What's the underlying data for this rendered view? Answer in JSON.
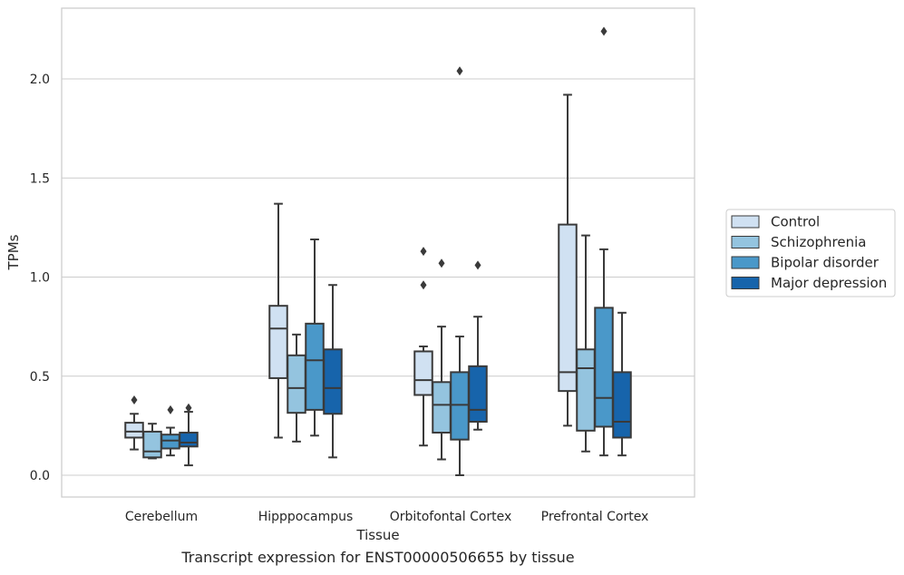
{
  "caption": "Transcript expression for ENST00000506655 by tissue",
  "chart_data": {
    "type": "box",
    "xlabel": "Tissue",
    "ylabel": "TPMs",
    "ylim": [
      -0.1,
      2.35
    ],
    "yticks": [
      0.0,
      0.5,
      1.0,
      1.5,
      2.0
    ],
    "ytick_labels": [
      "0.0",
      "0.5",
      "1.0",
      "1.5",
      "2.0"
    ],
    "grid": "horizontal",
    "legend_position": "right",
    "categories": [
      "Cerebellum",
      "Hipppocampus",
      "Orbitofontal Cortex",
      "Prefrontal Cortex"
    ],
    "series": [
      {
        "name": "Control",
        "color": "#d0e1f2",
        "boxes": [
          {
            "whislo": 0.13,
            "q1": 0.19,
            "med": 0.22,
            "q3": 0.265,
            "whishi": 0.31,
            "fliers": [
              0.38
            ]
          },
          {
            "whislo": 0.19,
            "q1": 0.49,
            "med": 0.74,
            "q3": 0.855,
            "whishi": 1.37,
            "fliers": []
          },
          {
            "whislo": 0.15,
            "q1": 0.405,
            "med": 0.48,
            "q3": 0.625,
            "whishi": 0.65,
            "fliers": [
              0.96,
              1.13
            ]
          },
          {
            "whislo": 0.25,
            "q1": 0.425,
            "med": 0.52,
            "q3": 1.265,
            "whishi": 1.92,
            "fliers": []
          }
        ]
      },
      {
        "name": "Schizophrenia",
        "color": "#94c4df",
        "boxes": [
          {
            "whislo": 0.085,
            "q1": 0.09,
            "med": 0.12,
            "q3": 0.22,
            "whishi": 0.26,
            "fliers": []
          },
          {
            "whislo": 0.17,
            "q1": 0.315,
            "med": 0.44,
            "q3": 0.605,
            "whishi": 0.71,
            "fliers": []
          },
          {
            "whislo": 0.08,
            "q1": 0.215,
            "med": 0.355,
            "q3": 0.47,
            "whishi": 0.75,
            "fliers": [
              1.07
            ]
          },
          {
            "whislo": 0.12,
            "q1": 0.225,
            "med": 0.54,
            "q3": 0.635,
            "whishi": 1.21,
            "fliers": []
          }
        ]
      },
      {
        "name": "Bipolar disorder",
        "color": "#4a98c9",
        "boxes": [
          {
            "whislo": 0.1,
            "q1": 0.135,
            "med": 0.175,
            "q3": 0.205,
            "whishi": 0.24,
            "fliers": [
              0.33
            ]
          },
          {
            "whislo": 0.2,
            "q1": 0.33,
            "med": 0.58,
            "q3": 0.765,
            "whishi": 1.19,
            "fliers": []
          },
          {
            "whislo": 0.0,
            "q1": 0.18,
            "med": 0.355,
            "q3": 0.52,
            "whishi": 0.7,
            "fliers": [
              2.04
            ]
          },
          {
            "whislo": 0.1,
            "q1": 0.245,
            "med": 0.39,
            "q3": 0.845,
            "whishi": 1.14,
            "fliers": [
              2.24
            ]
          }
        ]
      },
      {
        "name": "Major depression",
        "color": "#1764ab",
        "boxes": [
          {
            "whislo": 0.05,
            "q1": 0.145,
            "med": 0.165,
            "q3": 0.215,
            "whishi": 0.32,
            "fliers": [
              0.34
            ]
          },
          {
            "whislo": 0.09,
            "q1": 0.31,
            "med": 0.44,
            "q3": 0.635,
            "whishi": 0.96,
            "fliers": []
          },
          {
            "whislo": 0.23,
            "q1": 0.27,
            "med": 0.33,
            "q3": 0.55,
            "whishi": 0.8,
            "fliers": [
              1.06
            ]
          },
          {
            "whislo": 0.1,
            "q1": 0.19,
            "med": 0.27,
            "q3": 0.52,
            "whishi": 0.82,
            "fliers": []
          }
        ]
      }
    ]
  }
}
